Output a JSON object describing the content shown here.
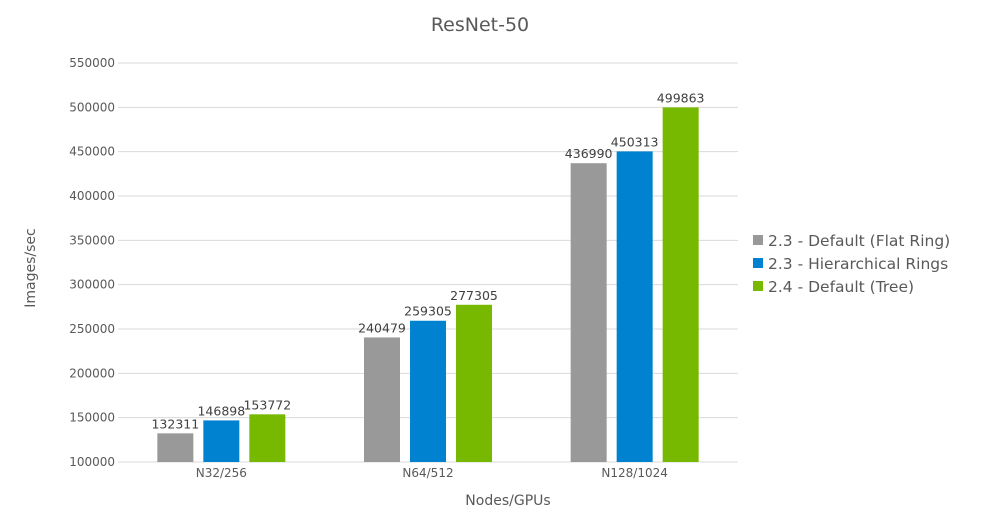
{
  "chart_data": {
    "type": "bar",
    "title": "ResNet-50",
    "xlabel": "Nodes/GPUs",
    "ylabel": "Images/sec",
    "categories": [
      "N32/256",
      "N64/512",
      "N128/1024"
    ],
    "series": [
      {
        "name": "2.3 - Default (Flat Ring)",
        "color": "#999999",
        "values": [
          132311,
          240479,
          436990
        ]
      },
      {
        "name": "2.3 - Hierarchical Rings",
        "color": "#0082d0",
        "values": [
          146898,
          259305,
          450313
        ]
      },
      {
        "name": "2.4 - Default (Tree)",
        "color": "#76b900",
        "values": [
          153772,
          277305,
          499863
        ]
      }
    ],
    "ylim": [
      100000,
      550000
    ],
    "yticks": [
      100000,
      150000,
      200000,
      250000,
      300000,
      350000,
      400000,
      450000,
      500000,
      550000
    ],
    "grid": true,
    "legend_position": "right"
  }
}
